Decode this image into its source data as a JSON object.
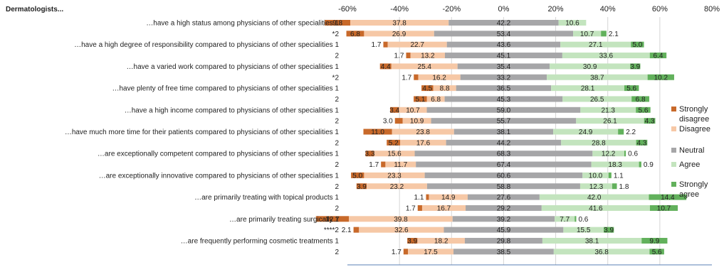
{
  "chart_data": {
    "type": "bar",
    "orientation": "horizontal",
    "stacked": "diverging",
    "title": "Dermatologists...",
    "xlim": [
      -60,
      80
    ],
    "x_ticks": [
      -60,
      -40,
      -20,
      0,
      20,
      40,
      60,
      80
    ],
    "x_tick_labels": [
      "-60%",
      "-40%",
      "-20%",
      "0%",
      "20%",
      "40%",
      "60%",
      "80%"
    ],
    "grid": "vertical",
    "legend_position": "right",
    "series": [
      {
        "name": "Strongly disagree",
        "color": "#c8692a"
      },
      {
        "name": "Disagree",
        "color": "#f6c8a6"
      },
      {
        "name": "Neutral",
        "color": "#a6a6a8"
      },
      {
        "name": "Agree",
        "color": "#c3e4be"
      },
      {
        "name": "Strongly agree",
        "color": "#62b15c"
      }
    ],
    "rows": [
      {
        "label": "…have a high status among physicians of other specialities 1",
        "values": [
          9.8,
          37.8,
          42.2,
          10.6,
          0
        ]
      },
      {
        "label": "*2",
        "values": [
          6.8,
          26.9,
          53.4,
          10.7,
          2.1
        ]
      },
      {
        "label": "…have a high degree of responsibility compared to physicians of other specialities 1",
        "values": [
          1.7,
          22.7,
          43.6,
          27.1,
          5.0
        ]
      },
      {
        "label": "2",
        "values": [
          1.7,
          13.2,
          45.1,
          33.6,
          6.4
        ]
      },
      {
        "label": "…have a varied work compared to physicians of other specialities 1",
        "values": [
          4.4,
          25.4,
          35.4,
          30.9,
          3.9
        ]
      },
      {
        "label": "*2",
        "values": [
          1.7,
          16.2,
          33.2,
          38.7,
          10.2
        ]
      },
      {
        "label": "…have plenty of free time compared to physicians of other specialities 1",
        "values": [
          4.5,
          8.8,
          36.5,
          28.1,
          5.6
        ]
      },
      {
        "label": "2",
        "values": [
          5.1,
          6.8,
          45.3,
          26.5,
          6.8
        ]
      },
      {
        "label": "…have a high income compared to physicians of other specialities 1",
        "values": [
          3.4,
          10.7,
          59.0,
          21.3,
          5.6
        ]
      },
      {
        "label": "2",
        "values": [
          3.0,
          10.9,
          55.7,
          26.1,
          4.3
        ]
      },
      {
        "label": "…have much more time for their patients compared to physicians of other specialities 1",
        "values": [
          11.0,
          23.8,
          38.1,
          24.9,
          2.2
        ]
      },
      {
        "label": "2",
        "values": [
          5.2,
          17.6,
          44.2,
          28.8,
          4.3
        ]
      },
      {
        "label": "…are exceptionally competent compared to physicians of other specialities 1",
        "values": [
          3.3,
          15.6,
          68.3,
          12.2,
          0.6
        ]
      },
      {
        "label": "2",
        "values": [
          1.7,
          11.7,
          67.4,
          18.3,
          0.9
        ]
      },
      {
        "label": "…are exceptionally innovative compared to physicians of other specialities 1",
        "values": [
          5.0,
          23.3,
          60.6,
          10.0,
          1.1
        ]
      },
      {
        "label": "2",
        "values": [
          3.9,
          23.2,
          58.8,
          12.3,
          1.8
        ]
      },
      {
        "label": "…are primarily treating with topical products 1",
        "values": [
          1.1,
          14.9,
          27.6,
          42.0,
          14.4
        ]
      },
      {
        "label": "2",
        "values": [
          1.7,
          16.7,
          29.2,
          41.6,
          10.7
        ]
      },
      {
        "label": "…are primarily treating surgically 1",
        "values": [
          12.7,
          39.8,
          39.2,
          7.7,
          0.6
        ]
      },
      {
        "label": "****2",
        "values": [
          2.1,
          32.6,
          45.9,
          15.5,
          3.9
        ]
      },
      {
        "label": "…are frequently performing cosmetic treatments 1",
        "values": [
          3.9,
          18.2,
          29.8,
          38.1,
          9.9
        ]
      },
      {
        "label": "2",
        "values": [
          1.7,
          17.5,
          38.5,
          36.8,
          5.6
        ]
      }
    ],
    "data_labels": [
      [
        "9.8",
        "37.8",
        "42.2",
        "10.6",
        ""
      ],
      [
        "6.8",
        "26.9",
        "53.4",
        "10.7",
        "2.1"
      ],
      [
        "1.7",
        "22.7",
        "43.6",
        "27.1",
        "5.0"
      ],
      [
        "1.7",
        "13.2",
        "45.1",
        "33.6",
        "6.4"
      ],
      [
        "4.4",
        "25.4",
        "35.4",
        "30.9",
        "3.9"
      ],
      [
        "1.7",
        "16.2",
        "33.2",
        "38.7",
        "10.2"
      ],
      [
        "4.5",
        "8.8",
        "36.5",
        "28.1",
        "5.6"
      ],
      [
        "5.1",
        "6.8",
        "45.3",
        "26.5",
        "6.8"
      ],
      [
        "3.4",
        "10.7",
        "59.0",
        "21.3",
        "5.6"
      ],
      [
        "3.0",
        "10.9",
        "55.7",
        "26.1",
        "4.3"
      ],
      [
        "11.0",
        "23.8",
        "38.1",
        "24.9",
        "2.2"
      ],
      [
        "5.2",
        "17.6",
        "44.2",
        "28.8",
        "4.3"
      ],
      [
        "3.3",
        "15.6",
        "68.3",
        "12.2",
        "0.6"
      ],
      [
        "1.7",
        "11.7",
        "67.4",
        "18.3",
        "0.9"
      ],
      [
        "5.0",
        "23.3",
        "60.6",
        "10.0",
        "1.1"
      ],
      [
        "3.9",
        "23.2",
        "58.8",
        "12.3",
        "1.8"
      ],
      [
        "1.1",
        "14.9",
        "27.6",
        "42.0",
        "14.4"
      ],
      [
        "1.7",
        "16.7",
        "29.2",
        "41.6",
        "10.7"
      ],
      [
        "12.7",
        "39.8",
        "39.2",
        "7.7",
        "0.6"
      ],
      [
        "2.1",
        "32.6",
        "45.9",
        "15.5",
        "3.9"
      ],
      [
        "3.9",
        "18.2",
        "29.8",
        "38.1",
        "9.9"
      ],
      [
        "1.7",
        "17.5",
        "38.5",
        "36.8",
        "5.6"
      ]
    ]
  }
}
